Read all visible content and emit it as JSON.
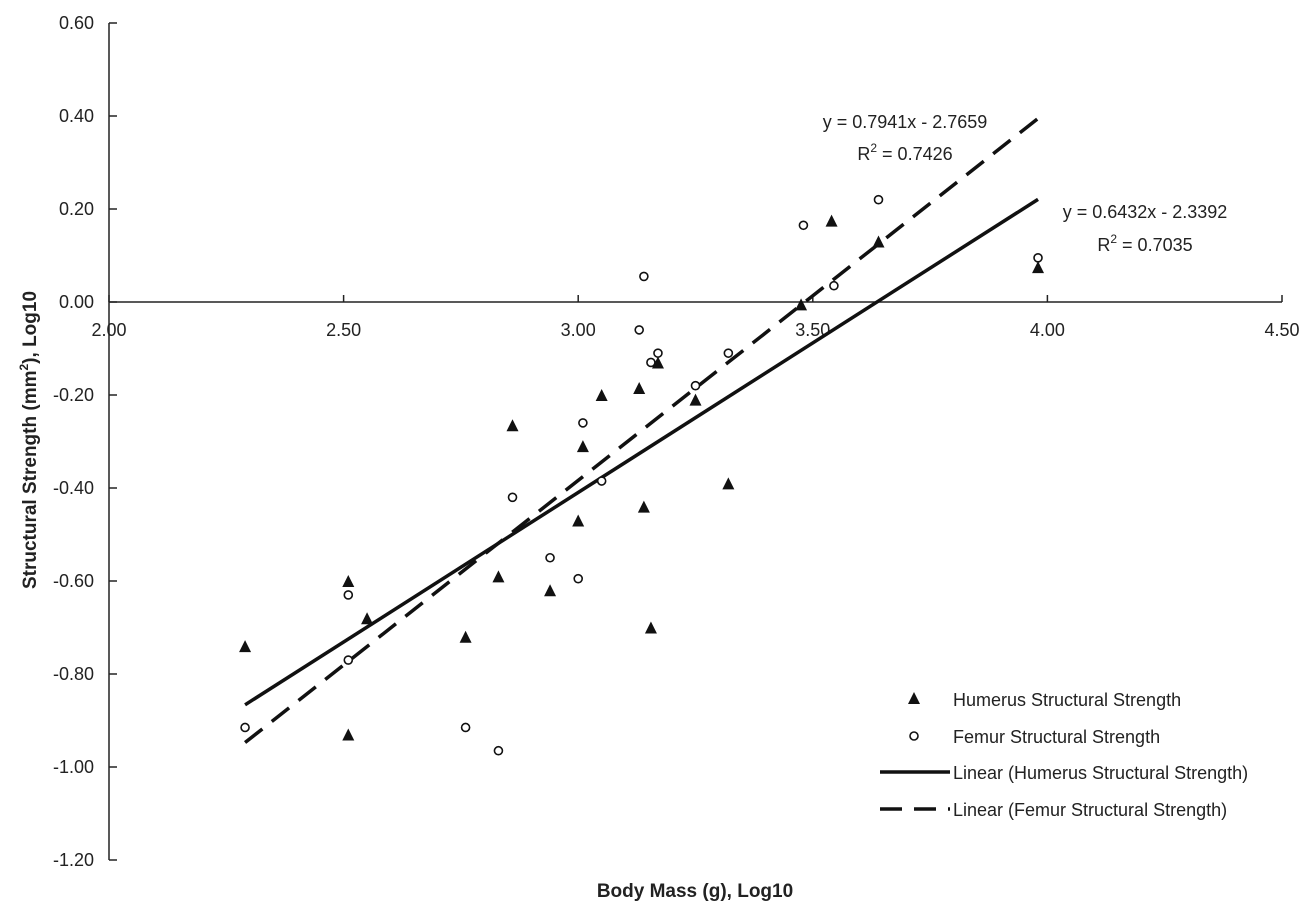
{
  "chart_data": {
    "type": "scatter",
    "xlabel": "Body Mass (g), Log10",
    "ylabel_parts": [
      "Structural Strength (mm",
      "2",
      "), Log10"
    ],
    "xlim": [
      2.0,
      4.5
    ],
    "ylim": [
      -1.2,
      0.6
    ],
    "x_ticks": [
      "2.00",
      "2.50",
      "3.00",
      "3.50",
      "4.00",
      "4.50"
    ],
    "y_ticks": [
      "0.60",
      "0.40",
      "0.20",
      "0.00",
      "-0.20",
      "-0.40",
      "-0.60",
      "-0.80",
      "-1.00",
      "-1.20"
    ],
    "legend_position": "bottom-right",
    "series": [
      {
        "name": "Humerus Structural Strength",
        "marker": "triangle",
        "points": [
          [
            2.29,
            -0.74
          ],
          [
            2.51,
            -0.6
          ],
          [
            2.51,
            -0.93
          ],
          [
            2.55,
            -0.68
          ],
          [
            2.76,
            -0.72
          ],
          [
            2.83,
            -0.59
          ],
          [
            2.86,
            -0.265
          ],
          [
            2.94,
            -0.62
          ],
          [
            3.0,
            -0.47
          ],
          [
            3.01,
            -0.31
          ],
          [
            3.05,
            -0.2
          ],
          [
            3.13,
            -0.185
          ],
          [
            3.14,
            -0.44
          ],
          [
            3.155,
            -0.7
          ],
          [
            3.17,
            -0.13
          ],
          [
            3.25,
            -0.21
          ],
          [
            3.32,
            -0.39
          ],
          [
            3.475,
            -0.005
          ],
          [
            3.54,
            0.175
          ],
          [
            3.64,
            0.13
          ],
          [
            3.98,
            0.075
          ]
        ]
      },
      {
        "name": "Femur Structural Strength",
        "marker": "circle",
        "points": [
          [
            2.29,
            -0.915
          ],
          [
            2.51,
            -0.63
          ],
          [
            2.51,
            -0.77
          ],
          [
            2.76,
            -0.915
          ],
          [
            2.83,
            -0.965
          ],
          [
            2.86,
            -0.42
          ],
          [
            2.94,
            -0.55
          ],
          [
            3.0,
            -0.595
          ],
          [
            3.01,
            -0.26
          ],
          [
            3.05,
            -0.385
          ],
          [
            3.13,
            -0.06
          ],
          [
            3.14,
            0.055
          ],
          [
            3.155,
            -0.13
          ],
          [
            3.17,
            -0.11
          ],
          [
            3.25,
            -0.18
          ],
          [
            3.32,
            -0.11
          ],
          [
            3.48,
            0.165
          ],
          [
            3.545,
            0.035
          ],
          [
            3.64,
            0.22
          ],
          [
            3.98,
            0.095
          ]
        ]
      }
    ],
    "trendlines": [
      {
        "name": "Linear (Humerus Structural Strength)",
        "style": "solid",
        "slope": 0.6432,
        "intercept": -2.3392,
        "x_range": [
          2.29,
          3.98
        ],
        "equation": "y = 0.6432x - 2.3392",
        "r2_label": "R",
        "r2_exp": "2",
        "r2_value": " = 0.7035"
      },
      {
        "name": "Linear (Femur Structural Strength)",
        "style": "dashed",
        "slope": 0.7941,
        "intercept": -2.7659,
        "x_range": [
          2.29,
          3.98
        ],
        "equation": "y = 0.7941x - 2.7659",
        "r2_label": "R",
        "r2_exp": "2",
        "r2_value": " = 0.7426"
      }
    ]
  }
}
